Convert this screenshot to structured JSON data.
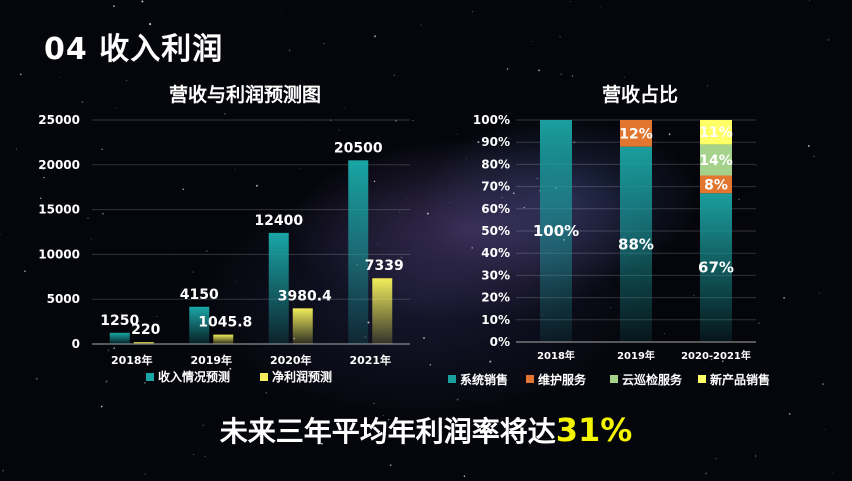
{
  "page": {
    "title": "04 收入利润",
    "footer_text": "未来三年平均年利润率将达",
    "footer_highlight": "31%"
  },
  "colors": {
    "revenue": "#1aa6a6",
    "profit": "#f2ec5a",
    "system_sales": "#1a9e9e",
    "maintenance": "#e2752f",
    "cloud_inspection": "#a5d28b",
    "new_product": "#ffff66"
  },
  "chart_data": [
    {
      "type": "bar",
      "title": "营收与利润预测图",
      "categories": [
        "2018年",
        "2019年",
        "2020年",
        "2021年"
      ],
      "series": [
        {
          "name": "收入情况预测",
          "values": [
            1250,
            4150,
            12400,
            20500
          ],
          "labels": [
            "1250",
            "4150",
            "12400",
            "20500"
          ]
        },
        {
          "name": "净利润预测",
          "values": [
            220,
            1045.8,
            3980.4,
            7339
          ],
          "labels": [
            "220",
            "1045.8",
            "3980.4",
            "7339"
          ]
        }
      ],
      "ylim": [
        0,
        25000
      ],
      "yticks": [
        "0",
        "5000",
        "10000",
        "15000",
        "20000",
        "25000"
      ],
      "grid": true,
      "legend": "bottom"
    },
    {
      "type": "bar",
      "stacked": true,
      "title": "营收占比",
      "categories": [
        "2018年",
        "2019年",
        "2020-2021年"
      ],
      "series": [
        {
          "name": "系统销售",
          "values": [
            100,
            88,
            67
          ],
          "labels": [
            "100%",
            "88%",
            "67%"
          ]
        },
        {
          "name": "维护服务",
          "values": [
            0,
            12,
            8
          ],
          "labels": [
            "",
            "12%",
            "8%"
          ]
        },
        {
          "name": "云巡检服务",
          "values": [
            0,
            0,
            14
          ],
          "labels": [
            "",
            "",
            "14%"
          ]
        },
        {
          "name": "新产品销售",
          "values": [
            0,
            0,
            11
          ],
          "labels": [
            "",
            "",
            "11%"
          ]
        }
      ],
      "ylim": [
        0,
        100
      ],
      "yticks": [
        "0%",
        "10%",
        "20%",
        "30%",
        "40%",
        "50%",
        "60%",
        "70%",
        "80%",
        "90%",
        "100%"
      ],
      "grid": true,
      "legend": "bottom"
    }
  ]
}
